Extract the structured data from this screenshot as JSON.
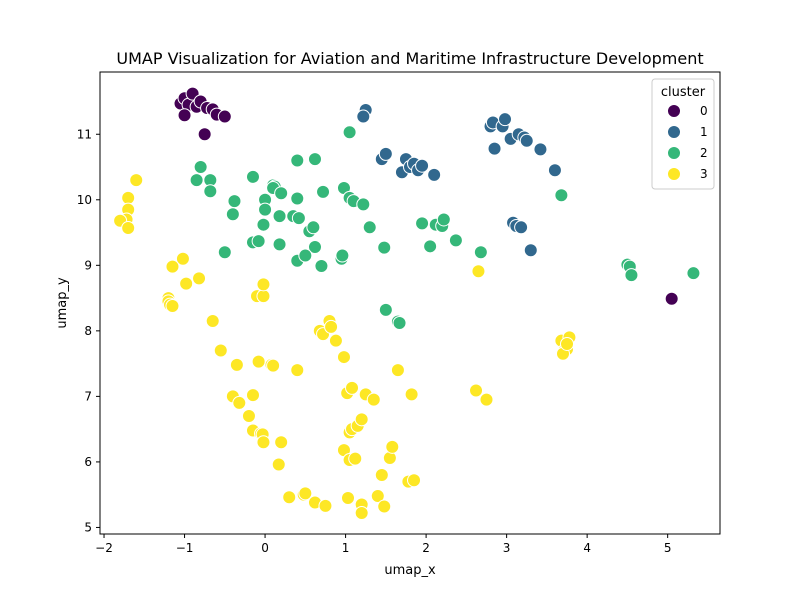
{
  "chart_data": {
    "type": "scatter",
    "title": "UMAP Visualization for Aviation and Maritime Infrastructure Development",
    "xlabel": "umap_x",
    "ylabel": "umap_y",
    "xlim": [
      -2.05,
      5.65
    ],
    "ylim": [
      4.9,
      11.95
    ],
    "xticks": [
      -2,
      -1,
      0,
      1,
      2,
      3,
      4,
      5
    ],
    "yticks": [
      5,
      6,
      7,
      8,
      9,
      10,
      11
    ],
    "grid": false,
    "legend": {
      "title": "cluster",
      "placement": "top-right"
    },
    "series": [
      {
        "name": "0",
        "color": "#440154",
        "points": [
          [
            -1.05,
            11.47
          ],
          [
            -1.0,
            11.55
          ],
          [
            -0.95,
            11.45
          ],
          [
            -0.9,
            11.62
          ],
          [
            -0.85,
            11.42
          ],
          [
            -0.8,
            11.5
          ],
          [
            -0.72,
            11.4
          ],
          [
            -0.65,
            11.38
          ],
          [
            -0.6,
            11.3
          ],
          [
            -0.5,
            11.27
          ],
          [
            -1.0,
            11.29
          ],
          [
            -0.75,
            11.0
          ],
          [
            5.05,
            8.49
          ]
        ]
      },
      {
        "name": "1",
        "color": "#31688e",
        "points": [
          [
            1.25,
            11.37
          ],
          [
            1.22,
            11.27
          ],
          [
            1.45,
            10.62
          ],
          [
            1.5,
            10.7
          ],
          [
            1.7,
            10.42
          ],
          [
            1.75,
            10.62
          ],
          [
            1.8,
            10.5
          ],
          [
            1.85,
            10.55
          ],
          [
            1.9,
            10.45
          ],
          [
            1.95,
            10.52
          ],
          [
            2.1,
            10.38
          ],
          [
            2.8,
            11.12
          ],
          [
            2.83,
            11.18
          ],
          [
            2.95,
            11.12
          ],
          [
            2.98,
            11.23
          ],
          [
            2.85,
            10.78
          ],
          [
            3.05,
            10.93
          ],
          [
            3.15,
            11.0
          ],
          [
            3.22,
            10.95
          ],
          [
            3.25,
            10.9
          ],
          [
            3.42,
            10.77
          ],
          [
            3.6,
            10.45
          ],
          [
            3.08,
            9.65
          ],
          [
            3.12,
            9.6
          ],
          [
            3.18,
            9.58
          ],
          [
            3.3,
            9.23
          ]
        ]
      },
      {
        "name": "2",
        "color": "#35b779",
        "points": [
          [
            -0.8,
            10.5
          ],
          [
            -0.85,
            10.3
          ],
          [
            -0.68,
            10.3
          ],
          [
            -0.68,
            10.13
          ],
          [
            -0.38,
            9.98
          ],
          [
            -0.4,
            9.78
          ],
          [
            -0.5,
            9.2
          ],
          [
            -0.15,
            10.35
          ],
          [
            -0.15,
            9.35
          ],
          [
            -0.08,
            9.37
          ],
          [
            0.0,
            10.0
          ],
          [
            0.0,
            9.85
          ],
          [
            -0.02,
            9.62
          ],
          [
            0.1,
            10.22
          ],
          [
            0.12,
            10.2
          ],
          [
            0.1,
            10.18
          ],
          [
            0.2,
            10.1
          ],
          [
            0.18,
            9.75
          ],
          [
            0.18,
            9.32
          ],
          [
            0.35,
            9.75
          ],
          [
            0.42,
            9.72
          ],
          [
            0.4,
            10.02
          ],
          [
            0.4,
            10.6
          ],
          [
            0.62,
            10.62
          ],
          [
            0.55,
            9.52
          ],
          [
            0.6,
            9.58
          ],
          [
            0.62,
            9.28
          ],
          [
            0.4,
            9.07
          ],
          [
            0.5,
            9.15
          ],
          [
            0.72,
            10.12
          ],
          [
            0.7,
            8.99
          ],
          [
            0.95,
            9.1
          ],
          [
            0.96,
            9.15
          ],
          [
            0.98,
            10.18
          ],
          [
            1.05,
            10.03
          ],
          [
            1.1,
            9.98
          ],
          [
            1.22,
            9.93
          ],
          [
            1.05,
            11.03
          ],
          [
            1.3,
            9.58
          ],
          [
            1.48,
            9.27
          ],
          [
            1.5,
            8.32
          ],
          [
            1.65,
            8.14
          ],
          [
            1.67,
            8.12
          ],
          [
            1.95,
            9.64
          ],
          [
            2.05,
            9.29
          ],
          [
            2.12,
            9.62
          ],
          [
            2.2,
            9.6
          ],
          [
            2.22,
            9.7
          ],
          [
            2.37,
            9.38
          ],
          [
            2.68,
            9.2
          ],
          [
            3.68,
            10.07
          ],
          [
            4.5,
            9.01
          ],
          [
            4.53,
            8.98
          ],
          [
            4.55,
            8.85
          ],
          [
            5.32,
            8.88
          ]
        ]
      },
      {
        "name": "3",
        "color": "#fde725",
        "points": [
          [
            -1.6,
            10.3
          ],
          [
            -1.7,
            10.03
          ],
          [
            -1.7,
            9.85
          ],
          [
            -1.72,
            9.7
          ],
          [
            -1.8,
            9.68
          ],
          [
            -1.7,
            9.57
          ],
          [
            -1.15,
            8.98
          ],
          [
            -1.02,
            9.1
          ],
          [
            -0.82,
            8.8
          ],
          [
            -0.98,
            8.72
          ],
          [
            -1.2,
            8.5
          ],
          [
            -1.2,
            8.45
          ],
          [
            -1.18,
            8.4
          ],
          [
            -1.15,
            8.38
          ],
          [
            -0.65,
            8.15
          ],
          [
            -0.55,
            7.7
          ],
          [
            -0.35,
            7.48
          ],
          [
            -0.1,
            8.53
          ],
          [
            -0.02,
            8.53
          ],
          [
            -0.02,
            8.71
          ],
          [
            -0.08,
            7.53
          ],
          [
            0.08,
            7.48
          ],
          [
            0.1,
            7.47
          ],
          [
            0.4,
            7.4
          ],
          [
            -0.4,
            7.0
          ],
          [
            -0.32,
            6.9
          ],
          [
            -0.2,
            6.7
          ],
          [
            -0.15,
            7.02
          ],
          [
            -0.15,
            6.48
          ],
          [
            -0.05,
            6.43
          ],
          [
            -0.03,
            6.42
          ],
          [
            -0.02,
            6.3
          ],
          [
            0.2,
            6.3
          ],
          [
            0.17,
            5.96
          ],
          [
            0.3,
            5.46
          ],
          [
            0.48,
            5.5
          ],
          [
            0.5,
            5.52
          ],
          [
            0.62,
            5.38
          ],
          [
            0.75,
            5.33
          ],
          [
            0.68,
            8.0
          ],
          [
            0.72,
            7.95
          ],
          [
            0.8,
            8.15
          ],
          [
            0.82,
            8.06
          ],
          [
            0.88,
            7.85
          ],
          [
            0.98,
            7.6
          ],
          [
            1.02,
            7.05
          ],
          [
            1.08,
            7.13
          ],
          [
            1.25,
            7.03
          ],
          [
            1.35,
            6.95
          ],
          [
            1.05,
            6.45
          ],
          [
            1.08,
            6.5
          ],
          [
            1.15,
            6.55
          ],
          [
            1.2,
            6.65
          ],
          [
            0.98,
            6.18
          ],
          [
            1.05,
            6.03
          ],
          [
            1.12,
            6.05
          ],
          [
            1.03,
            5.45
          ],
          [
            1.2,
            5.35
          ],
          [
            1.2,
            5.22
          ],
          [
            1.4,
            5.48
          ],
          [
            1.45,
            5.8
          ],
          [
            1.48,
            5.32
          ],
          [
            1.55,
            6.06
          ],
          [
            1.58,
            6.23
          ],
          [
            1.65,
            7.4
          ],
          [
            1.82,
            7.03
          ],
          [
            1.78,
            5.7
          ],
          [
            1.85,
            5.72
          ],
          [
            2.62,
            7.09
          ],
          [
            2.75,
            6.95
          ],
          [
            2.65,
            8.91
          ],
          [
            3.68,
            7.85
          ],
          [
            3.72,
            7.7
          ],
          [
            3.75,
            7.72
          ],
          [
            3.78,
            7.9
          ],
          [
            3.7,
            7.65
          ],
          [
            3.75,
            7.8
          ]
        ]
      }
    ]
  }
}
